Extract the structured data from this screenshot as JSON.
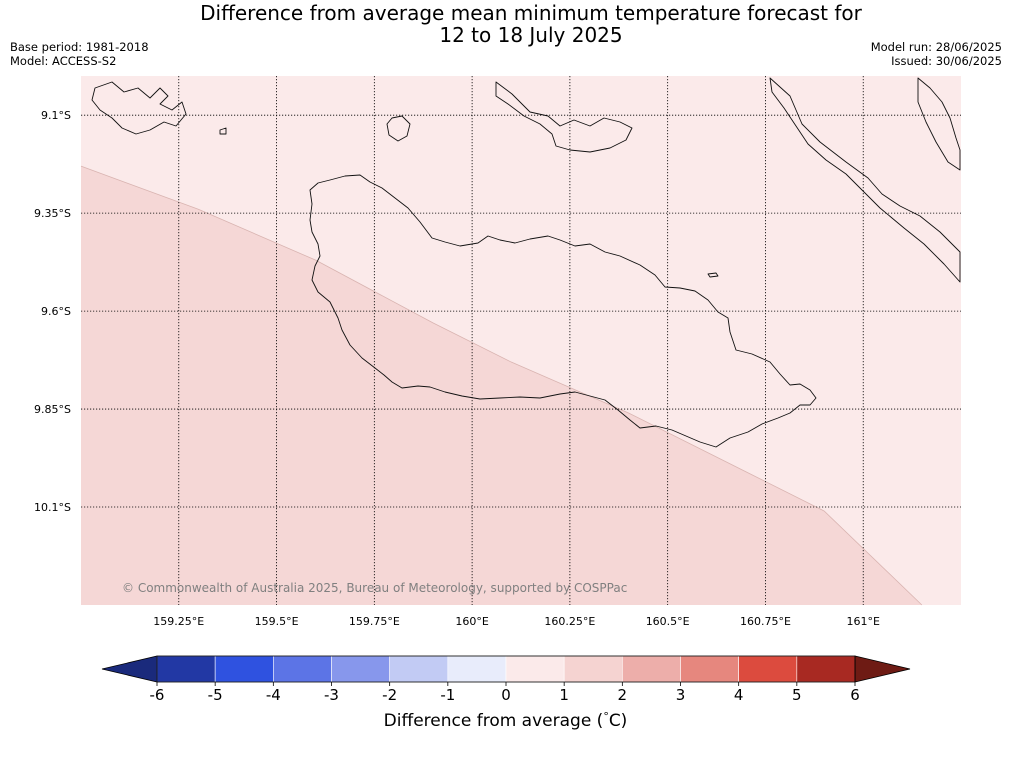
{
  "title": {
    "line1": "Difference from average mean minimum temperature forecast for",
    "line2": "12 to 18 July 2025"
  },
  "meta": {
    "base_period": "Base period: 1981-2018",
    "model": "Model: ACCESS-S2",
    "model_run": "Model run: 28/06/2025",
    "issued": "Issued: 30/06/2025"
  },
  "map": {
    "lon_range": [
      159.0,
      161.25
    ],
    "lat_range": [
      -10.35,
      -9.0
    ],
    "lat_ticks": [
      "9.1°S",
      "9.35°S",
      "9.6°S",
      "9.85°S",
      "10.1°S"
    ],
    "lat_values": [
      -9.1,
      -9.35,
      -9.6,
      -9.85,
      -10.1
    ],
    "lon_ticks": [
      "159.25°E",
      "159.5°E",
      "159.75°E",
      "160°E",
      "160.25°E",
      "160.5°E",
      "160.75°E",
      "161°E"
    ],
    "lon_values": [
      159.25,
      159.5,
      159.75,
      160.0,
      160.25,
      160.5,
      160.75,
      161.0
    ],
    "regions": [
      {
        "category": "0 to 1",
        "color": "#fbeaea"
      },
      {
        "category": "1 to 2",
        "color": "#f5d7d6"
      }
    ],
    "boundary_points": [
      [
        159.0,
        -9.23
      ],
      [
        159.3,
        -9.34
      ],
      [
        159.6,
        -9.47
      ],
      [
        159.9,
        -9.63
      ],
      [
        160.1,
        -9.73
      ],
      [
        160.4,
        -9.86
      ],
      [
        160.7,
        -10.01
      ],
      [
        160.9,
        -10.11
      ],
      [
        161.15,
        -10.35
      ]
    ],
    "copyright": "© Commonwealth of Australia 2025, Bureau of Meteorology, supported by COSPPac"
  },
  "colorbar": {
    "label": "Difference from average (",
    "unit_symbol": "°",
    "unit_letter": "C)",
    "ticks": [
      "-6",
      "-5",
      "-4",
      "-3",
      "-2",
      "-1",
      "0",
      "1",
      "2",
      "3",
      "4",
      "5",
      "6"
    ],
    "under_color": "#1a2a7c",
    "over_color": "#6e1b14",
    "colors": [
      "#2238a4",
      "#2f52e0",
      "#5c74e6",
      "#8797ec",
      "#c2cbf4",
      "#e8ecfb",
      "#fbeaea",
      "#f5d3d1",
      "#edaeaa",
      "#e6877e",
      "#dc4b3e",
      "#a82922"
    ]
  }
}
